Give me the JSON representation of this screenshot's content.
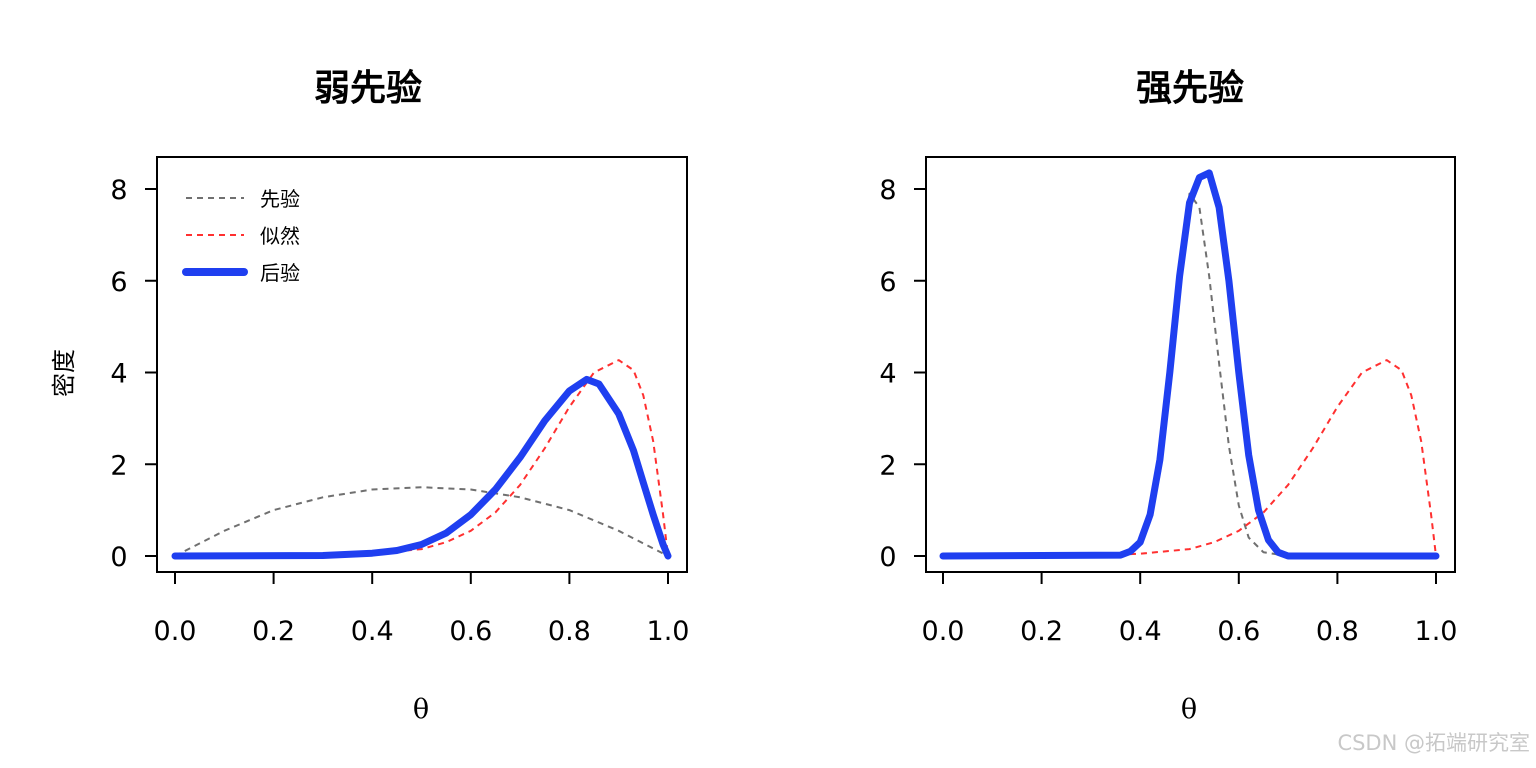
{
  "colors": {
    "prior": "#707070",
    "likelihood": "#ff3030",
    "posterior": "#1f3ff0",
    "axis": "#000000"
  },
  "watermark": "CSDN @拓端研究室",
  "chart_data": [
    {
      "type": "line",
      "title": "弱先验",
      "xlabel": "θ",
      "ylabel": "密度",
      "xlim": [
        0,
        1
      ],
      "ylim": [
        0,
        8.5
      ],
      "xticks": [
        "0.0",
        "0.2",
        "0.4",
        "0.6",
        "0.8",
        "1.0"
      ],
      "yticks": [
        "0",
        "2",
        "4",
        "6",
        "8"
      ],
      "legend": {
        "position": "top-left",
        "entries": [
          "先验",
          "似然",
          "后验"
        ]
      },
      "series": [
        {
          "name": "先验",
          "style": "dashed",
          "x": [
            0,
            0.1,
            0.2,
            0.3,
            0.4,
            0.5,
            0.6,
            0.7,
            0.8,
            0.9,
            1.0
          ],
          "y": [
            0,
            0.55,
            1.0,
            1.28,
            1.45,
            1.5,
            1.45,
            1.28,
            1.0,
            0.55,
            0
          ]
        },
        {
          "name": "似然",
          "style": "dashed",
          "x": [
            0,
            0.3,
            0.4,
            0.5,
            0.55,
            0.6,
            0.65,
            0.7,
            0.75,
            0.8,
            0.85,
            0.9,
            0.93,
            0.95,
            0.97,
            0.99,
            1.0
          ],
          "y": [
            0,
            0.01,
            0.05,
            0.15,
            0.3,
            0.55,
            0.95,
            1.55,
            2.35,
            3.25,
            4.0,
            4.27,
            4.05,
            3.5,
            2.5,
            0.9,
            0
          ]
        },
        {
          "name": "后验",
          "style": "solid",
          "x": [
            0,
            0.3,
            0.4,
            0.45,
            0.5,
            0.55,
            0.6,
            0.65,
            0.7,
            0.75,
            0.8,
            0.835,
            0.86,
            0.9,
            0.93,
            0.95,
            0.97,
            0.99,
            1.0
          ],
          "y": [
            0,
            0.01,
            0.06,
            0.12,
            0.25,
            0.5,
            0.9,
            1.45,
            2.15,
            2.95,
            3.6,
            3.85,
            3.75,
            3.1,
            2.3,
            1.6,
            0.9,
            0.25,
            0
          ]
        }
      ]
    },
    {
      "type": "line",
      "title": "强先验",
      "xlabel": "θ",
      "ylabel": "",
      "xlim": [
        0,
        1
      ],
      "ylim": [
        0,
        8.5
      ],
      "xticks": [
        "0.0",
        "0.2",
        "0.4",
        "0.6",
        "0.8",
        "1.0"
      ],
      "yticks": [
        "0",
        "2",
        "4",
        "6",
        "8"
      ],
      "series": [
        {
          "name": "先验",
          "style": "dashed",
          "x": [
            0,
            0.35,
            0.38,
            0.4,
            0.42,
            0.44,
            0.46,
            0.48,
            0.5,
            0.52,
            0.54,
            0.56,
            0.58,
            0.6,
            0.62,
            0.65,
            0.7,
            1.0
          ],
          "y": [
            0,
            0.02,
            0.1,
            0.3,
            0.8,
            1.8,
            3.6,
            5.8,
            7.9,
            7.6,
            6.1,
            4.2,
            2.4,
            1.1,
            0.4,
            0.08,
            0,
            0
          ]
        },
        {
          "name": "似然",
          "style": "dashed",
          "x": [
            0,
            0.3,
            0.4,
            0.5,
            0.55,
            0.6,
            0.65,
            0.7,
            0.75,
            0.8,
            0.85,
            0.9,
            0.93,
            0.95,
            0.97,
            0.99,
            1.0
          ],
          "y": [
            0,
            0.01,
            0.05,
            0.15,
            0.3,
            0.55,
            0.95,
            1.55,
            2.35,
            3.25,
            4.0,
            4.27,
            4.05,
            3.5,
            2.5,
            0.9,
            0
          ]
        },
        {
          "name": "后验",
          "style": "solid",
          "x": [
            0,
            0.36,
            0.38,
            0.4,
            0.42,
            0.44,
            0.46,
            0.48,
            0.5,
            0.52,
            0.54,
            0.56,
            0.58,
            0.6,
            0.62,
            0.64,
            0.66,
            0.68,
            0.7,
            1.0
          ],
          "y": [
            0,
            0.02,
            0.1,
            0.3,
            0.9,
            2.1,
            4.0,
            6.1,
            7.7,
            8.25,
            8.35,
            7.6,
            6.0,
            4.0,
            2.2,
            1.0,
            0.35,
            0.08,
            0,
            0
          ]
        }
      ]
    }
  ]
}
